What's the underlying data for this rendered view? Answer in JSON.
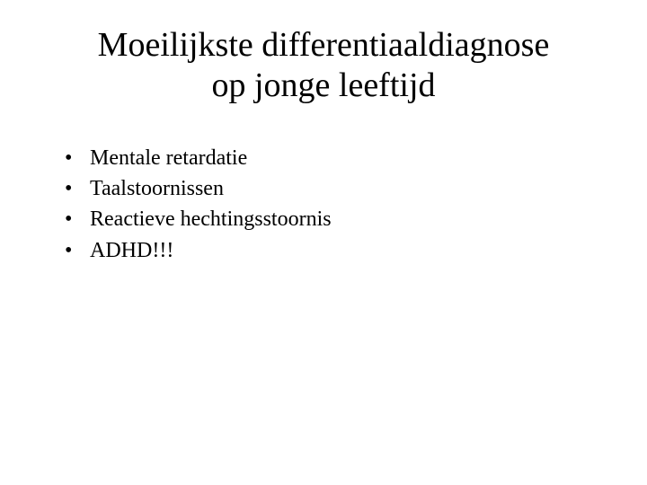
{
  "slide": {
    "title_line1": "Moeilijkste differentiaaldiagnose",
    "title_line2": "op jonge leeftijd",
    "bullets": [
      {
        "text": "Mentale retardatie"
      },
      {
        "text": "Taalstoornissen"
      },
      {
        "text": "Reactieve hechtingsstoornis"
      },
      {
        "text": "ADHD!!!"
      }
    ],
    "colors": {
      "background": "#ffffff",
      "text": "#000000"
    },
    "typography": {
      "title_fontsize_pt": 29,
      "body_fontsize_pt": 18,
      "font_family": "Times New Roman"
    }
  }
}
